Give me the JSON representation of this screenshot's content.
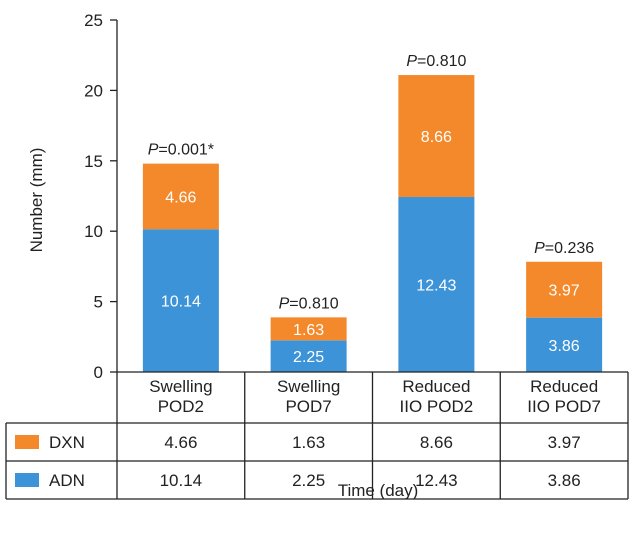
{
  "chart_data": {
    "type": "bar",
    "stacked": true,
    "categories": [
      "Swelling POD2",
      "Swelling POD7",
      "Reduced IIO POD2",
      "Reduced IIO POD7"
    ],
    "category_lines": [
      [
        "Swelling",
        "POD2"
      ],
      [
        "Swelling",
        "POD7"
      ],
      [
        "Reduced",
        "IIO POD2"
      ],
      [
        "Reduced",
        "IIO POD7"
      ]
    ],
    "series": [
      {
        "name": "ADN",
        "values": [
          10.14,
          2.25,
          12.43,
          3.86
        ],
        "labels": [
          "10.14",
          "2.25",
          "12.43",
          "3.86"
        ],
        "color": "#3d93d7"
      },
      {
        "name": "DXN",
        "values": [
          4.66,
          1.63,
          8.66,
          3.97
        ],
        "labels": [
          "4.66",
          "1.63",
          "8.66",
          "3.97"
        ],
        "color": "#f3892a"
      }
    ],
    "p_values": [
      "0.001*",
      "0.810",
      "0.810",
      "0.236"
    ],
    "p_prefix": "P",
    "ylabel": "Number (mm)",
    "xlabel": "Time (day)",
    "ylim": [
      0,
      25
    ],
    "yticks": [
      0,
      5,
      10,
      15,
      20,
      25
    ],
    "data_table": {
      "rows": [
        {
          "name": "DXN",
          "values": [
            "4.66",
            "1.63",
            "8.66",
            "3.97"
          ],
          "color": "#f3892a"
        },
        {
          "name": "ADN",
          "values": [
            "10.14",
            "2.25",
            "12.43",
            "3.86"
          ],
          "color": "#3d93d7"
        }
      ]
    }
  }
}
